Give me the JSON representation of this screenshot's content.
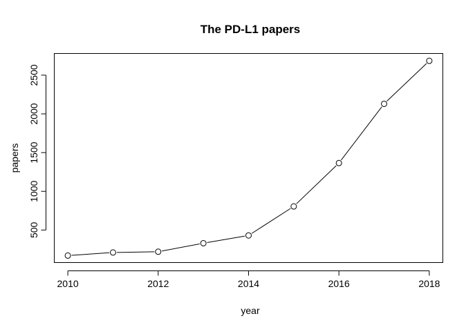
{
  "chart_data": {
    "type": "line",
    "title": "The PD-L1 papers",
    "xlabel": "year",
    "ylabel": "papers",
    "x": [
      2010,
      2011,
      2012,
      2013,
      2014,
      2015,
      2016,
      2017,
      2018
    ],
    "series": [
      {
        "values": [
          170,
          210,
          220,
          330,
          430,
          805,
          1365,
          2130,
          2685
        ]
      }
    ],
    "xlim": [
      2009.7,
      2018.3
    ],
    "ylim": [
      80,
      2780
    ],
    "x_ticks": [
      2010,
      2012,
      2014,
      2016,
      2018
    ],
    "x_tick_labels": [
      "2010",
      "2012",
      "2014",
      "2016",
      "2018"
    ],
    "y_ticks": [
      500,
      1000,
      1500,
      2000,
      2500
    ],
    "y_tick_labels": [
      "500",
      "1000",
      "1500",
      "2000",
      "2500"
    ],
    "marker": "open-circle",
    "line_color": "#000000",
    "grid": false,
    "legend": "none"
  }
}
